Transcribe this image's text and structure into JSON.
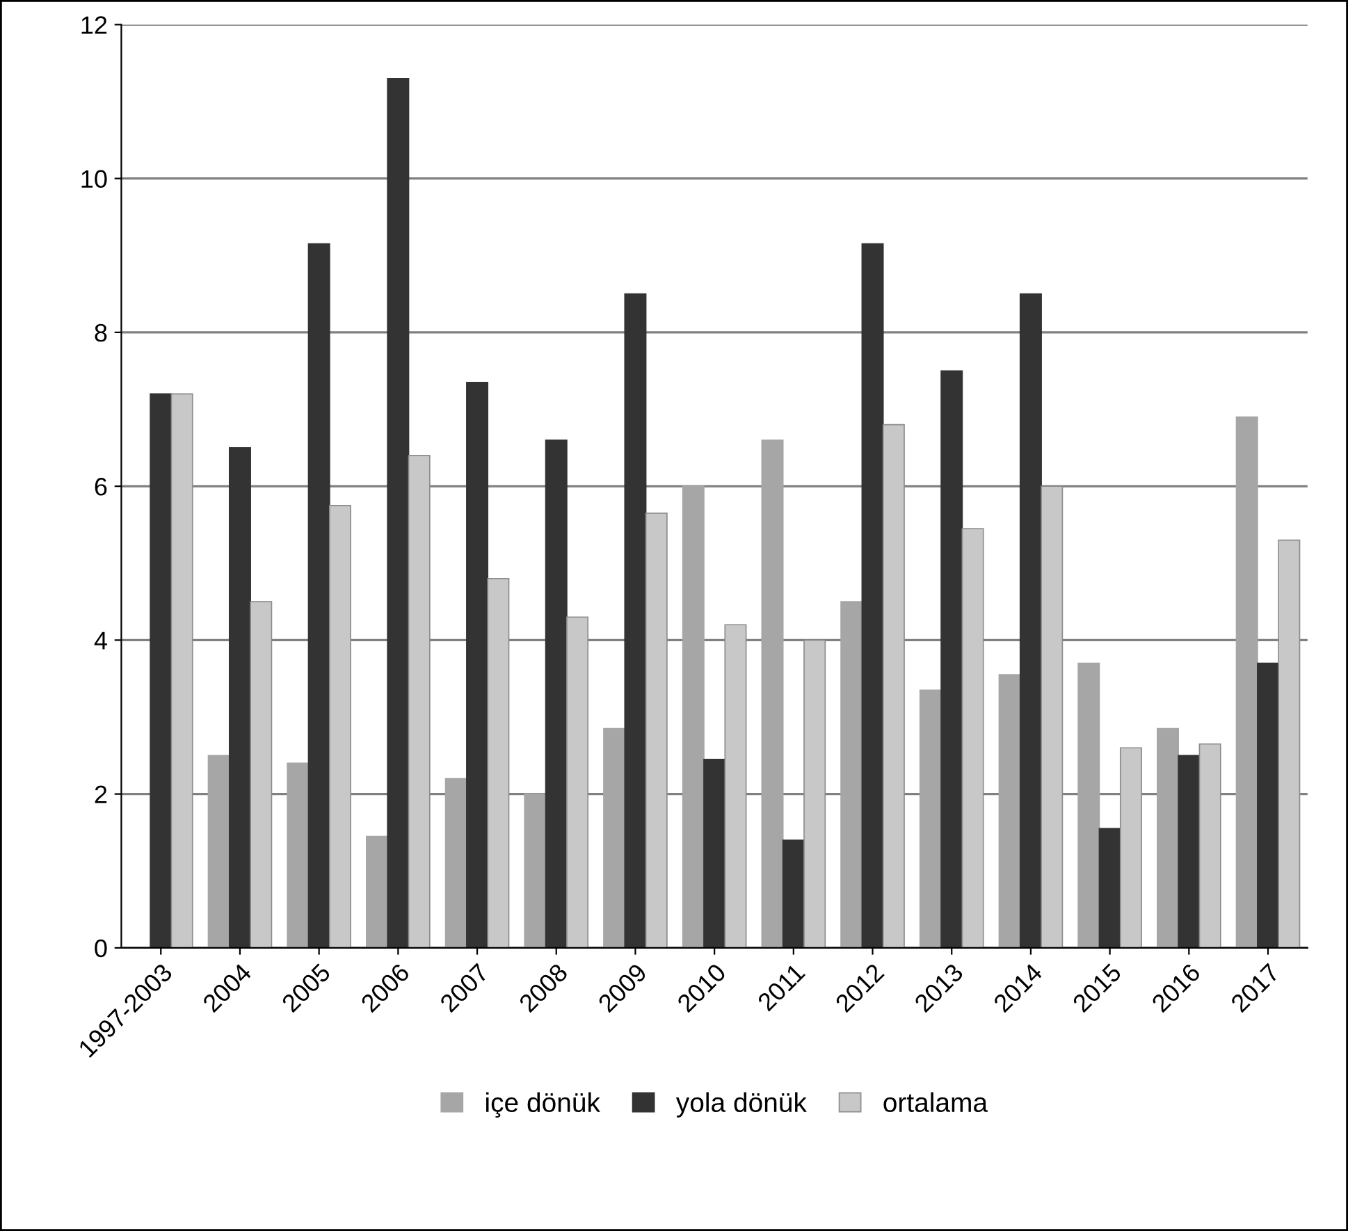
{
  "chart_data": {
    "type": "bar",
    "categories": [
      "1997-2003",
      "2004",
      "2005",
      "2006",
      "2007",
      "2008",
      "2009",
      "2010",
      "2011",
      "2012",
      "2013",
      "2014",
      "2015",
      "2016",
      "2017"
    ],
    "series": [
      {
        "name": "içe dönük",
        "color": "#a6a6a6",
        "values": [
          0,
          2.5,
          2.4,
          1.45,
          2.2,
          2.0,
          2.85,
          6.0,
          6.6,
          4.5,
          3.35,
          3.55,
          3.7,
          2.85,
          6.9
        ]
      },
      {
        "name": "yola dönük",
        "color": "#333333",
        "values": [
          7.2,
          6.5,
          9.15,
          11.3,
          7.35,
          6.6,
          8.5,
          2.45,
          1.4,
          9.15,
          7.5,
          8.5,
          1.55,
          2.5,
          3.7
        ]
      },
      {
        "name": "ortalama",
        "color": "#c8c8c8",
        "values": [
          7.2,
          4.5,
          5.75,
          6.4,
          4.8,
          4.3,
          5.65,
          4.2,
          4.0,
          6.8,
          5.45,
          6.0,
          2.6,
          2.65,
          5.3
        ]
      }
    ],
    "ylim": [
      0,
      12
    ],
    "yticks": [
      0,
      2,
      4,
      6,
      8,
      10,
      12
    ],
    "grid": "y",
    "legend": "bottom"
  }
}
